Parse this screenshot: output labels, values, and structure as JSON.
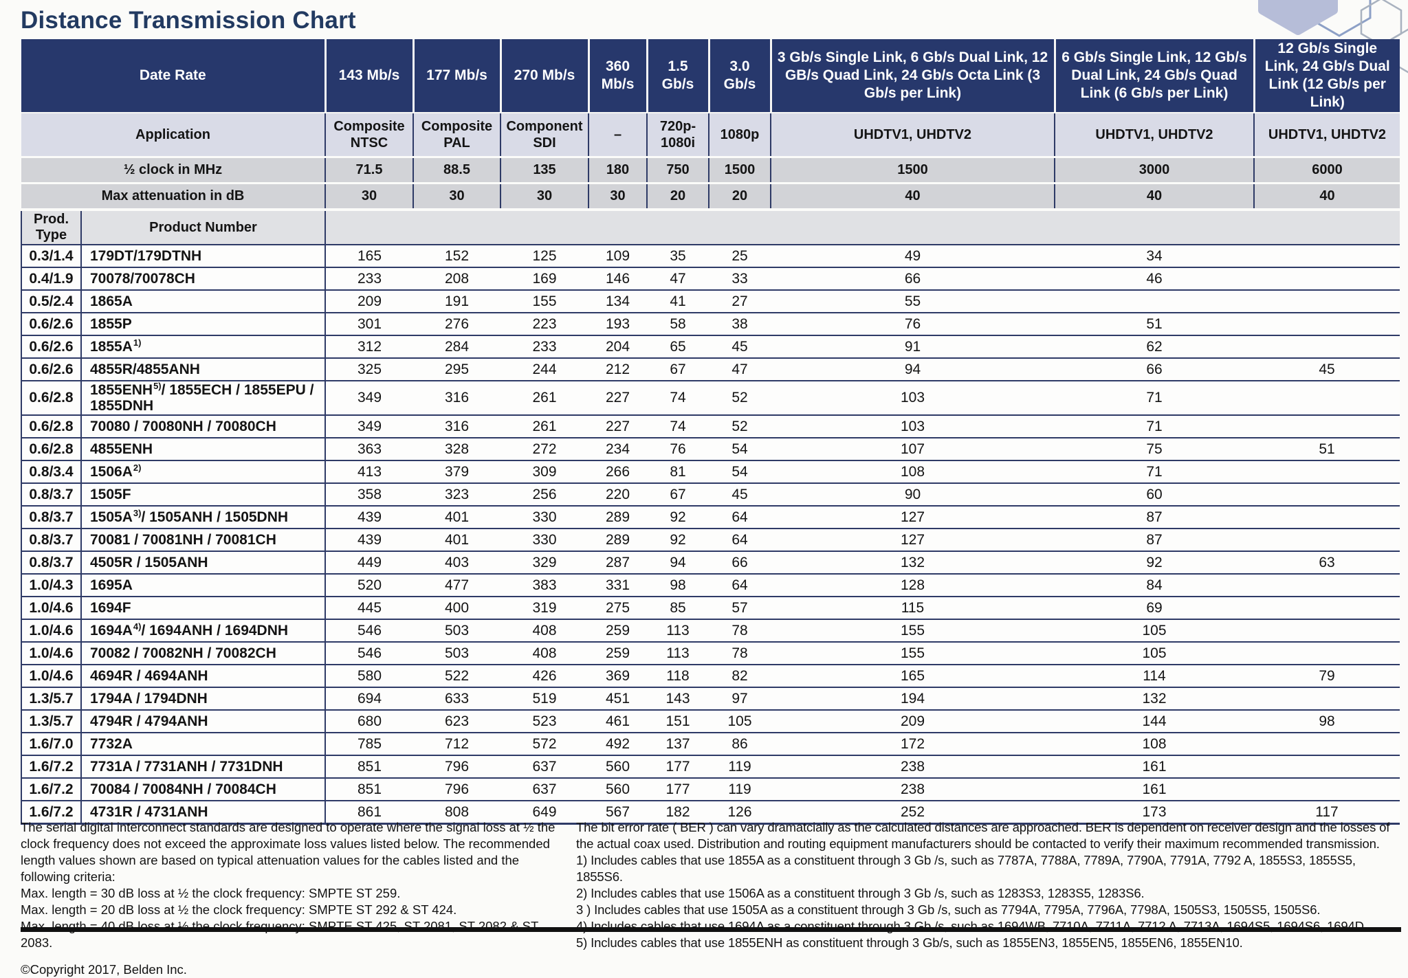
{
  "title": "Distance Transmission Chart",
  "colors": {
    "header_navy": "#27386c",
    "application_row": "#d9dbe7",
    "gray_band": "#d2d3d7",
    "prod_header_band": "#e0e1e4",
    "grid_line_navy": "#2e3a66",
    "title_text": "#223a61",
    "hexagon_fill": "#b6bdd8"
  },
  "table": {
    "header": {
      "date_rate_label": "Date Rate",
      "rate_cols": [
        "143 Mb/s",
        "177 Mb/s",
        "270 Mb/s",
        "360 Mb/s",
        "1.5 Gb/s",
        "3.0 Gb/s",
        "3 Gb/s Single Link, 6 Gb/s Dual Link, 12 GB/s Quad Link, 24 Gb/s Octa Link (3 Gb/s per Link)",
        "6 Gb/s Single Link, 12 Gb/s Dual Link, 24 Gb/s Quad Link (6 Gb/s per Link)",
        "12 Gb/s Single Link, 24 Gb/s Dual Link (12 Gb/s per Link)"
      ],
      "application_label": "Application",
      "application_cols": [
        "Composite NTSC",
        "Composite PAL",
        "Component SDI",
        "–",
        "720p- 1080i",
        "1080p",
        "UHDTV1, UHDTV2",
        "UHDTV1, UHDTV2",
        "UHDTV1, UHDTV2"
      ],
      "half_clock_label": "½ clock in MHz",
      "half_clock_values": [
        "71.5",
        "88.5",
        "135",
        "180",
        "750",
        "1500",
        "1500",
        "3000",
        "6000"
      ],
      "max_atten_label": "Max attenuation in dB",
      "max_atten_values": [
        "30",
        "30",
        "30",
        "30",
        "20",
        "20",
        "40",
        "40",
        "40"
      ],
      "prod_type_label": "Prod. Type",
      "product_number_label": "Product Number"
    },
    "rows": [
      {
        "type": "0.3/1.4",
        "product": {
          "pre": "179DT/179DTNH",
          "sup": "",
          "post": ""
        },
        "values": [
          "165",
          "152",
          "125",
          "109",
          "35",
          "25",
          "49",
          "34",
          ""
        ]
      },
      {
        "type": "0.4/1.9",
        "product": {
          "pre": "70078/70078CH",
          "sup": "",
          "post": ""
        },
        "values": [
          "233",
          "208",
          "169",
          "146",
          "47",
          "33",
          "66",
          "46",
          ""
        ]
      },
      {
        "type": "0.5/2.4",
        "product": {
          "pre": "1865A",
          "sup": "",
          "post": ""
        },
        "values": [
          "209",
          "191",
          "155",
          "134",
          "41",
          "27",
          "55",
          "",
          ""
        ]
      },
      {
        "type": "0.6/2.6",
        "product": {
          "pre": "1855P",
          "sup": "",
          "post": ""
        },
        "values": [
          "301",
          "276",
          "223",
          "193",
          "58",
          "38",
          "76",
          "51",
          ""
        ]
      },
      {
        "type": "0.6/2.6",
        "product": {
          "pre": "1855A",
          "sup": "1)",
          "post": ""
        },
        "values": [
          "312",
          "284",
          "233",
          "204",
          "65",
          "45",
          "91",
          "62",
          ""
        ]
      },
      {
        "type": "0.6/2.6",
        "product": {
          "pre": "4855R/4855ANH",
          "sup": "",
          "post": ""
        },
        "values": [
          "325",
          "295",
          "244",
          "212",
          "67",
          "47",
          "94",
          "66",
          "45"
        ]
      },
      {
        "type": "0.6/2.8",
        "product": {
          "pre": "1855ENH",
          "sup": "5)",
          "post": "/ 1855ECH / 1855EPU / 1855DNH"
        },
        "values": [
          "349",
          "316",
          "261",
          "227",
          "74",
          "52",
          "103",
          "71",
          ""
        ]
      },
      {
        "type": "0.6/2.8",
        "product": {
          "pre": "70080 / 70080NH / 70080CH",
          "sup": "",
          "post": ""
        },
        "values": [
          "349",
          "316",
          "261",
          "227",
          "74",
          "52",
          "103",
          "71",
          ""
        ]
      },
      {
        "type": "0.6/2.8",
        "product": {
          "pre": "4855ENH",
          "sup": "",
          "post": ""
        },
        "values": [
          "363",
          "328",
          "272",
          "234",
          "76",
          "54",
          "107",
          "75",
          "51"
        ]
      },
      {
        "type": "0.8/3.4",
        "product": {
          "pre": "1506A",
          "sup": "2)",
          "post": ""
        },
        "values": [
          "413",
          "379",
          "309",
          "266",
          "81",
          "54",
          "108",
          "71",
          ""
        ]
      },
      {
        "type": "0.8/3.7",
        "product": {
          "pre": "1505F",
          "sup": "",
          "post": ""
        },
        "values": [
          "358",
          "323",
          "256",
          "220",
          "67",
          "45",
          "90",
          "60",
          ""
        ]
      },
      {
        "type": "0.8/3.7",
        "product": {
          "pre": "1505A",
          "sup": "3)",
          "post": "/ 1505ANH / 1505DNH"
        },
        "values": [
          "439",
          "401",
          "330",
          "289",
          "92",
          "64",
          "127",
          "87",
          ""
        ]
      },
      {
        "type": "0.8/3.7",
        "product": {
          "pre": "70081 / 70081NH / 70081CH",
          "sup": "",
          "post": ""
        },
        "values": [
          "439",
          "401",
          "330",
          "289",
          "92",
          "64",
          "127",
          "87",
          ""
        ]
      },
      {
        "type": "0.8/3.7",
        "product": {
          "pre": "4505R / 1505ANH",
          "sup": "",
          "post": ""
        },
        "values": [
          "449",
          "403",
          "329",
          "287",
          "94",
          "66",
          "132",
          "92",
          "63"
        ]
      },
      {
        "type": "1.0/4.3",
        "product": {
          "pre": "1695A",
          "sup": "",
          "post": ""
        },
        "values": [
          "520",
          "477",
          "383",
          "331",
          "98",
          "64",
          "128",
          "84",
          ""
        ]
      },
      {
        "type": "1.0/4.6",
        "product": {
          "pre": "1694F",
          "sup": "",
          "post": ""
        },
        "values": [
          "445",
          "400",
          "319",
          "275",
          "85",
          "57",
          "115",
          "69",
          ""
        ]
      },
      {
        "type": "1.0/4.6",
        "product": {
          "pre": "1694A",
          "sup": "4)",
          "post": "/ 1694ANH / 1694DNH"
        },
        "values": [
          "546",
          "503",
          "408",
          "259",
          "113",
          "78",
          "155",
          "105",
          ""
        ]
      },
      {
        "type": "1.0/4.6",
        "product": {
          "pre": "70082 / 70082NH / 70082CH",
          "sup": "",
          "post": ""
        },
        "values": [
          "546",
          "503",
          "408",
          "259",
          "113",
          "78",
          "155",
          "105",
          ""
        ]
      },
      {
        "type": "1.0/4.6",
        "product": {
          "pre": "4694R / 4694ANH",
          "sup": "",
          "post": ""
        },
        "values": [
          "580",
          "522",
          "426",
          "369",
          "118",
          "82",
          "165",
          "114",
          "79"
        ]
      },
      {
        "type": "1.3/5.7",
        "product": {
          "pre": "1794A / 1794DNH",
          "sup": "",
          "post": ""
        },
        "values": [
          "694",
          "633",
          "519",
          "451",
          "143",
          "97",
          "194",
          "132",
          ""
        ]
      },
      {
        "type": "1.3/5.7",
        "product": {
          "pre": "4794R / 4794ANH",
          "sup": "",
          "post": ""
        },
        "values": [
          "680",
          "623",
          "523",
          "461",
          "151",
          "105",
          "209",
          "144",
          "98"
        ]
      },
      {
        "type": "1.6/7.0",
        "product": {
          "pre": "7732A",
          "sup": "",
          "post": ""
        },
        "values": [
          "785",
          "712",
          "572",
          "492",
          "137",
          "86",
          "172",
          "108",
          ""
        ]
      },
      {
        "type": "1.6/7.2",
        "product": {
          "pre": "7731A / 7731ANH / 7731DNH",
          "sup": "",
          "post": ""
        },
        "values": [
          "851",
          "796",
          "637",
          "560",
          "177",
          "119",
          "238",
          "161",
          ""
        ]
      },
      {
        "type": "1.6/7.2",
        "product": {
          "pre": "70084 / 70084NH / 70084CH",
          "sup": "",
          "post": ""
        },
        "values": [
          "851",
          "796",
          "637",
          "560",
          "177",
          "119",
          "238",
          "161",
          ""
        ]
      },
      {
        "type": "1.6/7.2",
        "product": {
          "pre": "4731R / 4731ANH",
          "sup": "",
          "post": ""
        },
        "values": [
          "861",
          "808",
          "649",
          "567",
          "182",
          "126",
          "252",
          "173",
          "117"
        ]
      }
    ]
  },
  "footnotes": {
    "left": {
      "intro": "The serial digital interconnect standards are designed to operate where the signal loss at ½ the clock frequency does not exceed the approximate loss values listed below. The recommended length values shown are based on typical attenuation values for the cables listed and the following criteria:",
      "criteria": [
        "Max. length = 30 dB loss at ½ the clock frequency: SMPTE ST 259.",
        "Max. length = 20 dB loss at ½ the clock frequency: SMPTE ST 292 & ST 424.",
        "Max. length = 40 dB loss at ½ the clock frequency: SMPTE ST 425, ST 2081, ST 2082 & ST 2083."
      ],
      "copyright": "©Copyright 2017, Belden Inc."
    },
    "right": {
      "intro": "The bit error rate ( BER ) can vary dramatcially as the calculated distances are approached. BER is dependent on receiver design and the losses of the actual coax used. Distribution and routing equipment manufacturers should be contacted to verify their maximum recommended transmission.",
      "notes": [
        "1) Includes cables that use 1855A as a constituent through 3 Gb /s, such as 7787A, 7788A, 7789A, 7790A, 7791A, 7792 A, 1855S3, 1855S5, 1855S6.",
        "2) Includes cables that use 1506A as a constituent through 3 Gb /s, such as 1283S3, 1283S5, 1283S6.",
        "3 ) Includes cables that use 1505A as a constituent through 3 Gb /s, such as 7794A, 7795A, 7796A, 7798A, 1505S3, 1505S5, 1505S6.",
        "4) Includes cables that use 1694A as a constituent through 3 Gb /s, such as 1694WB, 7710A, 7711A, 7712 A, 7713A, 1694S5, 1694S6, 1694D.",
        "5) Includes cables that use 1855ENH as constituent through 3 Gb/s, such as 1855EN3, 1855EN5, 1855EN6, 1855EN10."
      ]
    }
  }
}
